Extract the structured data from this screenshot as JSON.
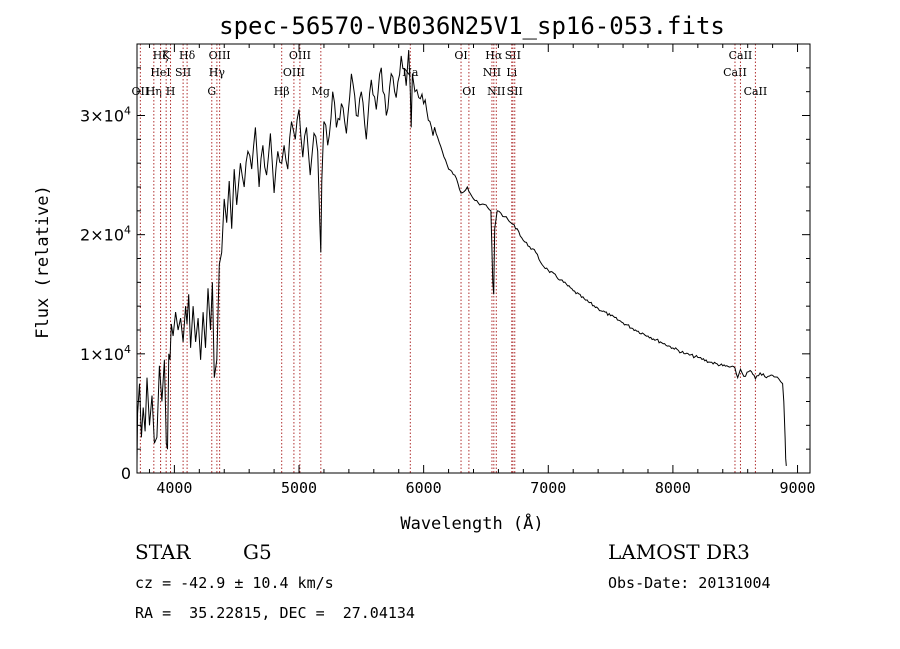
{
  "chart_data": {
    "type": "line",
    "title": "spec-56570-VB036N25V1_sp16-053.fits",
    "xlabel": "Wavelength (Å)",
    "ylabel": "Flux (relative)",
    "xlim": [
      3700,
      9100
    ],
    "ylim": [
      0,
      36000
    ],
    "x_ticks": [
      4000,
      5000,
      6000,
      7000,
      8000,
      9000
    ],
    "x_tick_labels": [
      "4000",
      "5000",
      "6000",
      "7000",
      "8000",
      "9000"
    ],
    "y_ticks": [
      0,
      10000,
      20000,
      30000
    ],
    "y_tick_labels": [
      {
        "mantissa": "0",
        "exp": ""
      },
      {
        "mantissa": "1×10",
        "exp": "4"
      },
      {
        "mantissa": "2×10",
        "exp": "4"
      },
      {
        "mantissa": "3×10",
        "exp": "4"
      }
    ],
    "line_color": "#000000",
    "marker_color": "#b03030",
    "series": [
      {
        "name": "spectrum",
        "x": [
          3700,
          3705,
          3720,
          3735,
          3750,
          3765,
          3780,
          3800,
          3820,
          3840,
          3860,
          3880,
          3900,
          3920,
          3935,
          3945,
          3955,
          3965,
          3975,
          3990,
          4010,
          4030,
          4050,
          4070,
          4090,
          4101,
          4115,
          4130,
          4150,
          4170,
          4190,
          4210,
          4230,
          4250,
          4270,
          4290,
          4305,
          4320,
          4340,
          4360,
          4380,
          4400,
          4420,
          4440,
          4460,
          4480,
          4500,
          4530,
          4560,
          4590,
          4620,
          4650,
          4680,
          4710,
          4740,
          4770,
          4800,
          4830,
          4861,
          4880,
          4910,
          4940,
          4970,
          5000,
          5030,
          5060,
          5090,
          5120,
          5150,
          5167,
          5175,
          5183,
          5200,
          5230,
          5270,
          5300,
          5340,
          5380,
          5420,
          5460,
          5500,
          5540,
          5580,
          5620,
          5660,
          5700,
          5740,
          5780,
          5820,
          5860,
          5880,
          5893,
          5900,
          5910,
          5930,
          5960,
          6000,
          6050,
          6100,
          6150,
          6200,
          6250,
          6300,
          6350,
          6400,
          6450,
          6500,
          6540,
          6555,
          6562,
          6570,
          6590,
          6620,
          6650,
          6700,
          6750,
          6800,
          6850,
          6900,
          6950,
          7000,
          7100,
          7200,
          7300,
          7400,
          7500,
          7600,
          7700,
          7800,
          7900,
          8000,
          8100,
          8200,
          8300,
          8400,
          8498,
          8520,
          8542,
          8570,
          8620,
          8662,
          8700,
          8750,
          8800,
          8850,
          8880,
          8890,
          8900,
          8905,
          8910
        ],
        "y": [
          800,
          5000,
          7500,
          3000,
          5500,
          3500,
          8000,
          4000,
          6500,
          2500,
          3000,
          9000,
          6000,
          9500,
          2500,
          2000,
          10000,
          9500,
          12500,
          11500,
          13500,
          12000,
          13000,
          11000,
          14000,
          12500,
          15000,
          10500,
          14000,
          11000,
          13000,
          9500,
          13500,
          10500,
          15500,
          12000,
          16000,
          8000,
          9500,
          17500,
          18500,
          23000,
          21000,
          24500,
          20500,
          25500,
          22500,
          26000,
          24000,
          27000,
          25500,
          29000,
          24000,
          27500,
          25000,
          28500,
          23500,
          27000,
          26000,
          27500,
          25500,
          29500,
          28000,
          30500,
          26500,
          29000,
          25000,
          28500,
          27000,
          21000,
          18500,
          24500,
          29500,
          27500,
          32000,
          29000,
          31000,
          28500,
          33500,
          30000,
          32000,
          28000,
          33000,
          30500,
          34000,
          30000,
          33500,
          31500,
          35000,
          32500,
          35500,
          32000,
          29000,
          33500,
          32000,
          31500,
          31000,
          29500,
          28500,
          27000,
          25500,
          25000,
          23500,
          24000,
          23000,
          22500,
          22500,
          22000,
          16000,
          15000,
          20500,
          22000,
          21800,
          21500,
          21000,
          20500,
          19500,
          19000,
          18500,
          17500,
          17000,
          16200,
          15300,
          14500,
          13800,
          13200,
          12600,
          12000,
          11500,
          11000,
          10500,
          10000,
          9700,
          9300,
          9000,
          8800,
          8000,
          8700,
          8100,
          8600,
          7900,
          8400,
          8000,
          8200,
          7900,
          7500,
          6000,
          3000,
          1200,
          600
        ]
      }
    ],
    "line_markers": [
      {
        "wl": 3727,
        "label": "OII",
        "row": 2
      },
      {
        "wl": 3835,
        "label": "Hη",
        "row": 2
      },
      {
        "wl": 3889,
        "label": "Hζ",
        "row": 0
      },
      {
        "wl": 3889,
        "label": "HeI",
        "row": 1
      },
      {
        "wl": 3934,
        "label": "K",
        "row": 0
      },
      {
        "wl": 3969,
        "label": "H",
        "row": 2
      },
      {
        "wl": 4070,
        "label": "SII",
        "row": 1
      },
      {
        "wl": 4102,
        "label": "Hδ",
        "row": 0
      },
      {
        "wl": 4300,
        "label": "G",
        "row": 2
      },
      {
        "wl": 4341,
        "label": "Hγ",
        "row": 1
      },
      {
        "wl": 4363,
        "label": "OIII",
        "row": 0
      },
      {
        "wl": 4861,
        "label": "Hβ",
        "row": 2
      },
      {
        "wl": 4959,
        "label": "OIII",
        "row": 1
      },
      {
        "wl": 5007,
        "label": "OIII",
        "row": 0
      },
      {
        "wl": 5175,
        "label": "Mg",
        "row": 2
      },
      {
        "wl": 5893,
        "label": "Na",
        "row": 1
      },
      {
        "wl": 6300,
        "label": "OI",
        "row": 0
      },
      {
        "wl": 6363,
        "label": "OI",
        "row": 2
      },
      {
        "wl": 6548,
        "label": "NII",
        "row": 1
      },
      {
        "wl": 6563,
        "label": "Hα",
        "row": 0
      },
      {
        "wl": 6583,
        "label": "NII",
        "row": 2
      },
      {
        "wl": 6707,
        "label": "Li",
        "row": 1
      },
      {
        "wl": 6716,
        "label": "SII",
        "row": 0
      },
      {
        "wl": 6731,
        "label": "SII",
        "row": 2
      },
      {
        "wl": 8498,
        "label": "CaII",
        "row": 1
      },
      {
        "wl": 8542,
        "label": "CaII",
        "row": 0
      },
      {
        "wl": 8662,
        "label": "CaII",
        "row": 2
      }
    ]
  },
  "info": {
    "class_label": "STAR",
    "subclass_label": "G5",
    "survey_label": "LAMOST DR3",
    "cz_text": "cz = -42.9 ± 10.4 km/s",
    "obs_date_text": "Obs-Date: 20131004",
    "coords_text": "RA =  35.22815, DEC =  27.04134"
  }
}
